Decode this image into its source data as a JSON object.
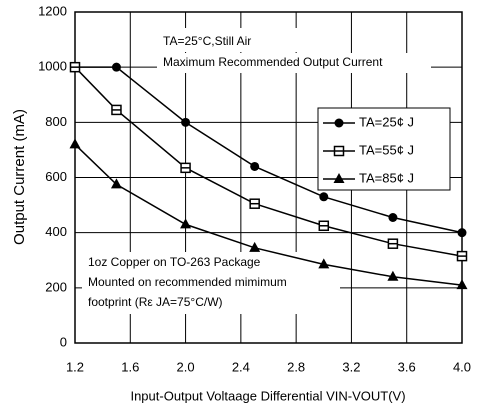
{
  "chart_data": {
    "type": "line",
    "x_label": "Input-Output Voltaage Differential VIN-VOUT(V)",
    "y_label": "Output Current (mA)",
    "annotations": [
      "TA=25°C,Still Air",
      "Maximum Recommended Output Current",
      "1oz Copper on TO-263 Package",
      "Mounted on recommended mimimum",
      "footprint  (Rε JA=75°C/W)"
    ],
    "x": [
      1.2,
      1.5,
      2.0,
      2.5,
      3.0,
      3.5,
      4.0
    ],
    "series": [
      {
        "name": "TA=25¢ J",
        "color": "#000000",
        "marker": "circle",
        "values": [
          1000,
          1000,
          800,
          640,
          530,
          455,
          400
        ]
      },
      {
        "name": "TA=55¢ J",
        "color": "#000000",
        "marker": "square",
        "values": [
          1000,
          845,
          635,
          505,
          425,
          360,
          315
        ]
      },
      {
        "name": "TA=85¢ J",
        "color": "#000000",
        "marker": "triangle",
        "values": [
          720,
          575,
          430,
          345,
          285,
          240,
          210
        ]
      }
    ],
    "xlim": [
      1.2,
      4.0
    ],
    "xticks": [
      1.2,
      1.6,
      {
        "value": 2,
        "label": "2.0"
      },
      2.4,
      2.8,
      3.2,
      3.6,
      {
        "value": 4,
        "label": "4.0"
      }
    ],
    "ylim": [
      0,
      1200
    ],
    "yticks": [
      0,
      200,
      400,
      600,
      800,
      1000,
      1200
    ],
    "grid": true
  }
}
